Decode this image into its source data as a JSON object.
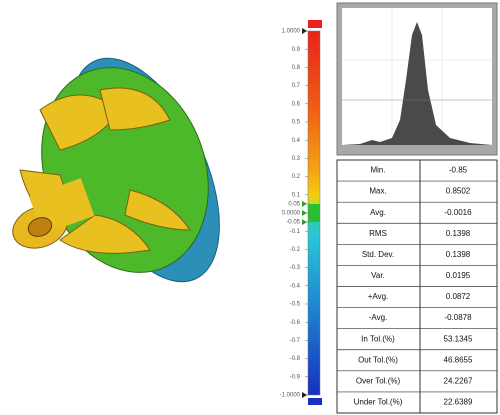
{
  "color_scale": {
    "lim": [
      -1,
      1
    ],
    "ticks": [
      {
        "value": 1,
        "label": "1.0000"
      },
      0.9,
      0.8,
      0.7,
      0.6,
      0.5,
      0.4,
      0.3,
      0.2,
      0.1,
      0.05,
      {
        "value": 0,
        "label": "0.0000"
      },
      -0.05,
      -0.1,
      -0.2,
      -0.3,
      -0.4,
      -0.5,
      -0.6,
      -0.7,
      -0.8,
      -0.9,
      {
        "value": -1,
        "label": "-1.0000"
      }
    ]
  },
  "table": {
    "rows": [
      [
        "Min.",
        -0.85
      ],
      [
        "Max.",
        0.8502
      ],
      [
        "Avg.",
        -0.0016
      ],
      [
        "RMS",
        0.1398
      ],
      [
        "Std. Dev.",
        0.1398
      ],
      [
        "Var.",
        0.0195
      ],
      [
        "+Avg.",
        0.0872
      ],
      [
        "-Avg.",
        -0.0878
      ],
      [
        "In Tol.(%)",
        53.1345
      ],
      [
        "Out Tol.(%)",
        46.8655
      ],
      [
        "Over Tol.(%)",
        24.2267
      ],
      [
        "Under Tol.(%)",
        22.6389
      ]
    ]
  }
}
